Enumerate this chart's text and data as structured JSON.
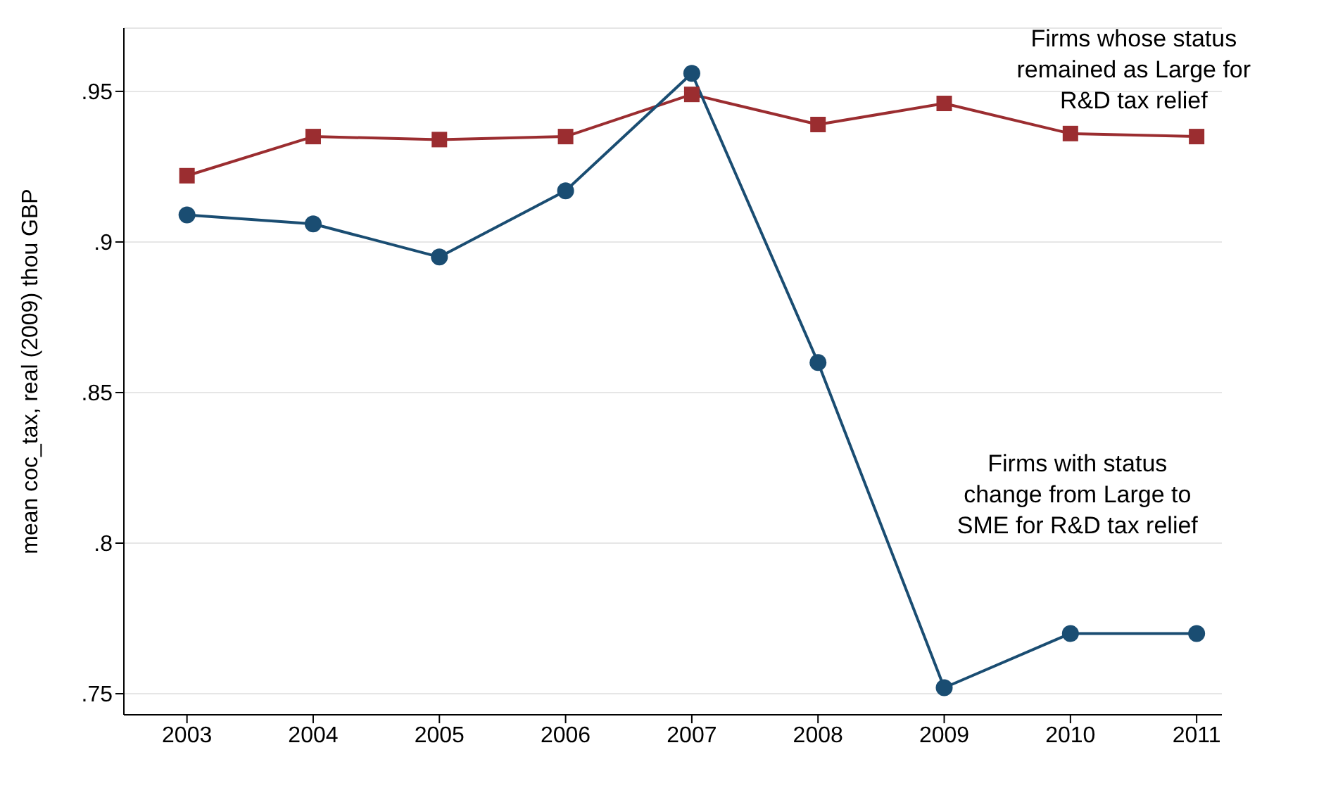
{
  "chart_data": {
    "type": "line",
    "ylabel": "mean coc_tax, real (2009) thou GBP",
    "x": [
      2003,
      2004,
      2005,
      2006,
      2007,
      2008,
      2009,
      2010,
      2011
    ],
    "series": [
      {
        "name": "Firms whose status remained as Large for R&D tax relief",
        "color": "#9b2d30",
        "marker": "square",
        "values": [
          0.922,
          0.935,
          0.934,
          0.935,
          0.949,
          0.939,
          0.946,
          0.936,
          0.935
        ]
      },
      {
        "name": "Firms with status change from Large to SME for R&D tax relief",
        "color": "#1a4d72",
        "marker": "circle",
        "values": [
          0.909,
          0.906,
          0.895,
          0.917,
          0.956,
          0.86,
          0.752,
          0.77,
          0.77
        ]
      }
    ],
    "xlim": [
      2002.5,
      2011.2
    ],
    "xticks": [
      2003,
      2004,
      2005,
      2006,
      2007,
      2008,
      2009,
      2010,
      2011
    ],
    "ylim": [
      0.743,
      0.971
    ],
    "yticks": [
      {
        "value": 0.75,
        "label": ".75"
      },
      {
        "value": 0.8,
        "label": ".8"
      },
      {
        "value": 0.85,
        "label": ".85"
      },
      {
        "value": 0.9,
        "label": ".9"
      },
      {
        "value": 0.95,
        "label": ".95"
      }
    ],
    "grid": "y",
    "legend": false,
    "line_style": "solid"
  }
}
